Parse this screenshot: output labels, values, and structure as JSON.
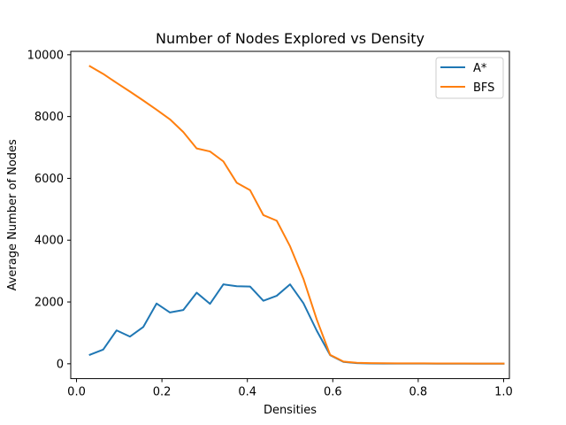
{
  "chart_data": {
    "type": "line",
    "title": "Number of Nodes Explored vs Density",
    "xlabel": "Densities",
    "ylabel": "Average Number of Nodes",
    "xlim": [
      -0.0135,
      1.0135
    ],
    "ylim": [
      -480,
      10110
    ],
    "xticks": [
      0.0,
      0.2,
      0.4,
      0.6,
      0.8,
      1.0
    ],
    "xtick_labels": [
      "0.0",
      "0.2",
      "0.4",
      "0.6",
      "0.8",
      "1.0"
    ],
    "yticks": [
      0,
      2000,
      4000,
      6000,
      8000,
      10000
    ],
    "ytick_labels": [
      "0",
      "2000",
      "4000",
      "6000",
      "8000",
      "10000"
    ],
    "grid": false,
    "legend_position": "top-right",
    "x": [
      0.03125,
      0.0625,
      0.09375,
      0.125,
      0.15625,
      0.1875,
      0.21875,
      0.25,
      0.28125,
      0.3125,
      0.34375,
      0.375,
      0.40625,
      0.4375,
      0.46875,
      0.5,
      0.53125,
      0.5625,
      0.59375,
      0.625,
      0.65625,
      0.6875,
      0.71875,
      0.75,
      0.78125,
      0.8125,
      0.84375,
      0.875,
      0.90625,
      0.9375,
      0.96875,
      1.0
    ],
    "series": [
      {
        "name": "A*",
        "color": "#1f77b4",
        "values": [
          290,
          460,
          1080,
          880,
          1190,
          1950,
          1660,
          1740,
          2300,
          1940,
          2570,
          2510,
          2500,
          2040,
          2200,
          2570,
          1960,
          1070,
          280,
          60,
          20,
          10,
          8,
          6,
          5,
          5,
          4,
          4,
          3,
          3,
          3,
          2
        ]
      },
      {
        "name": "BFS",
        "color": "#ff7f0e",
        "values": [
          9630,
          9380,
          9090,
          8810,
          8520,
          8220,
          7910,
          7500,
          6970,
          6870,
          6550,
          5860,
          5620,
          4810,
          4630,
          3800,
          2750,
          1430,
          290,
          70,
          30,
          20,
          18,
          15,
          14,
          12,
          11,
          10,
          9,
          8,
          8,
          7
        ]
      }
    ]
  }
}
